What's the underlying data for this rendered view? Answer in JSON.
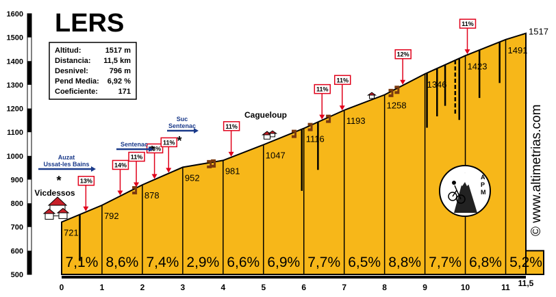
{
  "title": "LERS",
  "credit": "© www.altimetrias.com",
  "logo_text": "APM",
  "stats": [
    {
      "label": "Altitud:",
      "value": "1517 m"
    },
    {
      "label": "Distancia:",
      "value": "11,5 km"
    },
    {
      "label": "Desnivel:",
      "value": "796 m"
    },
    {
      "label": "Pend Media:",
      "value": "6,92 %"
    },
    {
      "label": "Coeficiente:",
      "value": "171"
    }
  ],
  "places": [
    {
      "name": "Vicdessos",
      "km": 0.1
    },
    {
      "name": "Cagueloup",
      "km": 5.35
    }
  ],
  "signs": [
    {
      "lines": [
        "Auzat",
        "Ussat-les Bains"
      ],
      "km": 0.2
    },
    {
      "lines": [
        "Sentenac"
      ],
      "km": 1.75
    },
    {
      "lines": [
        "Suc",
        "Sentenac"
      ],
      "km": 2.85
    }
  ],
  "chart_data": {
    "type": "area",
    "title": "LERS",
    "xlabel": "",
    "ylabel": "",
    "xlim": [
      0,
      11.5
    ],
    "ylim": [
      500,
      1600
    ],
    "y_ticks": [
      500,
      600,
      700,
      800,
      900,
      1000,
      1100,
      1200,
      1300,
      1400,
      1500,
      1600
    ],
    "x_ticks": [
      "0",
      "1",
      "2",
      "3",
      "4",
      "5",
      "6",
      "7",
      "8",
      "9",
      "10",
      "11",
      "11,5"
    ],
    "x_tick_values": [
      0,
      1,
      2,
      3,
      4,
      5,
      6,
      7,
      8,
      9,
      10,
      11,
      11.5
    ],
    "profile": [
      {
        "km": 0,
        "alt": 721,
        "label": "721"
      },
      {
        "km": 1,
        "alt": 792,
        "label": "792"
      },
      {
        "km": 2,
        "alt": 878,
        "label": "878"
      },
      {
        "km": 3,
        "alt": 952,
        "label": "952"
      },
      {
        "km": 4,
        "alt": 981,
        "label": "981"
      },
      {
        "km": 5,
        "alt": 1047,
        "label": "1047"
      },
      {
        "km": 6,
        "alt": 1116,
        "label": "1116"
      },
      {
        "km": 7,
        "alt": 1193,
        "label": "1193"
      },
      {
        "km": 8,
        "alt": 1258,
        "label": "1258"
      },
      {
        "km": 9,
        "alt": 1346,
        "label": "1346"
      },
      {
        "km": 10,
        "alt": 1423,
        "label": "1423"
      },
      {
        "km": 11,
        "alt": 1491,
        "label": "1491"
      },
      {
        "km": 11.5,
        "alt": 1517,
        "label": "1517"
      }
    ],
    "segments": [
      "7,1%",
      "8,6%",
      "7,4%",
      "2,9%",
      "6,6%",
      "6,9%",
      "7,7%",
      "6,5%",
      "8,8%",
      "7,7%",
      "6,8%",
      "5,2%"
    ],
    "max_gradients": [
      {
        "km": 0.6,
        "label": "13%"
      },
      {
        "km": 1.45,
        "label": "14%"
      },
      {
        "km": 1.85,
        "label": "11%"
      },
      {
        "km": 2.3,
        "label": "13%"
      },
      {
        "km": 2.65,
        "label": "11%"
      },
      {
        "km": 4.2,
        "label": "11%"
      },
      {
        "km": 6.45,
        "label": "11%"
      },
      {
        "km": 6.95,
        "label": "11%"
      },
      {
        "km": 8.45,
        "label": "12%"
      },
      {
        "km": 10.05,
        "label": "11%"
      }
    ],
    "fill_color": "#f7b719",
    "line_color": "#000000",
    "arrow_color": "#e0001a",
    "grid": false
  }
}
